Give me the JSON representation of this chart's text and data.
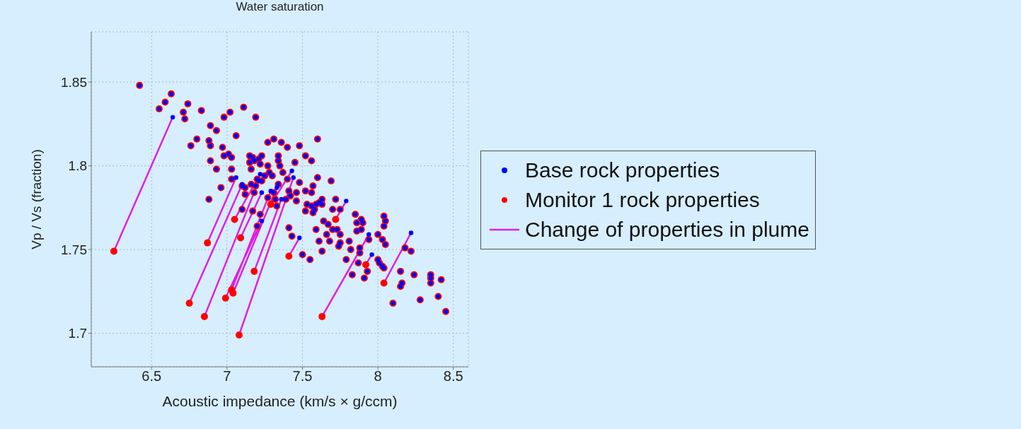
{
  "chart_data": {
    "type": "scatter",
    "title": "Water saturation",
    "xlabel": "Acoustic impedance (km/s × g/ccm)",
    "ylabel": "Vp / Vs (fraction)",
    "xlim": [
      6.1,
      8.6
    ],
    "xticks": [
      6.5,
      7,
      7.5,
      8,
      8.5
    ],
    "ylim": [
      1.68,
      1.88
    ],
    "yticks": [
      1.7,
      1.75,
      1.8,
      1.85
    ],
    "grid": true,
    "legend": "right",
    "marker": "circle",
    "series": [
      {
        "name": "Change of properties in plume",
        "type": "line",
        "marker": "none",
        "color": "#e020e0",
        "x": [
          6.64,
          6.25,
          null,
          7.06,
          6.87,
          null,
          7.1,
          6.75,
          null,
          7.21,
          6.85,
          null,
          7.23,
          6.99,
          null,
          7.29,
          7.03,
          null,
          7.33,
          7.04,
          null,
          7.44,
          7.08,
          null,
          7.23,
          7.09,
          null,
          7.22,
          7.05,
          null,
          7.36,
          7.18,
          null,
          7.43,
          7.29,
          null,
          7.48,
          7.41,
          null,
          7.94,
          7.63,
          null,
          7.79,
          7.72,
          null,
          7.96,
          7.92,
          null,
          8.22,
          8.04
        ],
        "values": [
          1.829,
          1.749,
          null,
          1.793,
          1.754,
          null,
          1.789,
          1.718,
          null,
          1.791,
          1.71,
          null,
          1.767,
          1.721,
          null,
          1.785,
          1.726,
          null,
          1.787,
          1.724,
          null,
          1.793,
          1.699,
          null,
          1.784,
          1.757,
          null,
          1.795,
          1.768,
          null,
          1.78,
          1.737,
          null,
          1.797,
          1.777,
          null,
          1.757,
          1.746,
          null,
          1.759,
          1.71,
          null,
          1.779,
          1.768,
          null,
          1.747,
          1.741,
          null,
          1.76,
          1.73
        ]
      },
      {
        "name": "Monitor 1 rock properties",
        "color": "#ff0000",
        "x": [
          6.42,
          6.63,
          6.59,
          6.55,
          6.74,
          6.83,
          6.71,
          6.72,
          7.02,
          6.98,
          6.89,
          6.93,
          6.8,
          6.76,
          6.88,
          6.89,
          6.97,
          6.98,
          7.01,
          7.03,
          6.89,
          6.93,
          7.03,
          7.03,
          6.96,
          6.88,
          7.11,
          7.19,
          7.06,
          7.27,
          7.31,
          7.36,
          7.4,
          7.48,
          7.6,
          7.15,
          7.17,
          7.23,
          7.15,
          7.18,
          7.21,
          7.22,
          7.16,
          7.27,
          7.34,
          7.34,
          7.35,
          7.37,
          7.45,
          7.52,
          7.56,
          7.28,
          7.25,
          7.3,
          7.2,
          7.23,
          7.19,
          7.16,
          7.1,
          7.12,
          7.12,
          7.18,
          7.27,
          7.31,
          7.34,
          7.4,
          7.41,
          7.42,
          7.46,
          7.46,
          7.48,
          7.6,
          7.69,
          7.52,
          7.56,
          7.57,
          7.53,
          7.56,
          7.59,
          7.61,
          7.63,
          7.63,
          7.52,
          7.57,
          7.58,
          7.1,
          7.17,
          7.22,
          7.32,
          7.33,
          7.39,
          7.2,
          7.41,
          7.43,
          7.5,
          7.55,
          7.59,
          7.61,
          7.63,
          7.66,
          7.64,
          7.67,
          7.68,
          7.72,
          7.7,
          7.75,
          7.7,
          7.73,
          7.75,
          7.74,
          7.75,
          7.81,
          7.82,
          7.79,
          7.83,
          7.85,
          7.86,
          7.89,
          7.9,
          7.86,
          7.89,
          7.88,
          7.88,
          7.87,
          7.93,
          7.91,
          7.94,
          8.0,
          8.04,
          8.05,
          8.04,
          8.03,
          8.05,
          8.0,
          8.01,
          8.03,
          8.04,
          8.18,
          8.22,
          8.15,
          8.24,
          8.16,
          8.15,
          8.1,
          8.28,
          8.35,
          8.35,
          8.35,
          8.42,
          8.4,
          8.45,
          6.25,
          6.87,
          6.75,
          6.85,
          6.99,
          7.03,
          7.04,
          7.08,
          7.09,
          7.05,
          7.18,
          7.29,
          7.41,
          7.63,
          7.72,
          7.92,
          8.04
        ],
        "values": [
          1.848,
          1.843,
          1.838,
          1.834,
          1.837,
          1.833,
          1.832,
          1.828,
          1.832,
          1.829,
          1.824,
          1.821,
          1.816,
          1.812,
          1.815,
          1.812,
          1.811,
          1.806,
          1.807,
          1.805,
          1.803,
          1.798,
          1.798,
          1.792,
          1.787,
          1.78,
          1.835,
          1.829,
          1.818,
          1.814,
          1.816,
          1.814,
          1.811,
          1.812,
          1.816,
          1.806,
          1.805,
          1.806,
          1.802,
          1.803,
          1.804,
          1.801,
          1.798,
          1.8,
          1.806,
          1.803,
          1.8,
          1.796,
          1.802,
          1.806,
          1.803,
          1.796,
          1.794,
          1.794,
          1.792,
          1.791,
          1.788,
          1.789,
          1.788,
          1.787,
          1.783,
          1.784,
          1.781,
          1.784,
          1.789,
          1.792,
          1.785,
          1.782,
          1.784,
          1.779,
          1.79,
          1.793,
          1.791,
          1.785,
          1.784,
          1.788,
          1.777,
          1.776,
          1.777,
          1.778,
          1.78,
          1.777,
          1.773,
          1.772,
          1.774,
          1.774,
          1.773,
          1.771,
          1.78,
          1.776,
          1.78,
          1.764,
          1.763,
          1.758,
          1.747,
          1.744,
          1.762,
          1.755,
          1.749,
          1.759,
          1.767,
          1.765,
          1.755,
          1.78,
          1.774,
          1.774,
          1.762,
          1.762,
          1.759,
          1.752,
          1.754,
          1.755,
          1.75,
          1.744,
          1.735,
          1.771,
          1.766,
          1.768,
          1.766,
          1.761,
          1.762,
          1.751,
          1.748,
          1.742,
          1.737,
          1.733,
          1.756,
          1.759,
          1.77,
          1.767,
          1.764,
          1.756,
          1.753,
          1.744,
          1.742,
          1.74,
          1.739,
          1.751,
          1.749,
          1.737,
          1.735,
          1.73,
          1.728,
          1.718,
          1.72,
          1.735,
          1.733,
          1.73,
          1.732,
          1.722,
          1.713,
          1.749,
          1.754,
          1.718,
          1.71,
          1.721,
          1.726,
          1.724,
          1.699,
          1.757,
          1.768,
          1.737,
          1.777,
          1.746,
          1.71,
          1.768,
          1.741,
          1.73
        ]
      },
      {
        "name": "Base rock properties",
        "color": "#0000ff",
        "x": [
          6.42,
          6.63,
          6.59,
          6.55,
          6.74,
          6.83,
          6.71,
          6.72,
          7.02,
          6.98,
          6.89,
          6.93,
          6.8,
          6.76,
          6.88,
          6.89,
          6.97,
          6.98,
          7.01,
          7.03,
          6.89,
          6.93,
          7.03,
          7.03,
          6.96,
          6.88,
          7.11,
          7.19,
          7.06,
          7.27,
          7.31,
          7.36,
          7.4,
          7.48,
          7.6,
          7.15,
          7.17,
          7.23,
          7.15,
          7.18,
          7.21,
          7.22,
          7.16,
          7.27,
          7.34,
          7.34,
          7.35,
          7.37,
          7.45,
          7.52,
          7.56,
          7.28,
          7.25,
          7.3,
          7.2,
          7.23,
          7.19,
          7.16,
          7.1,
          7.12,
          7.12,
          7.18,
          7.27,
          7.31,
          7.34,
          7.4,
          7.41,
          7.42,
          7.46,
          7.46,
          7.48,
          7.6,
          7.69,
          7.52,
          7.56,
          7.57,
          7.53,
          7.56,
          7.59,
          7.61,
          7.63,
          7.63,
          7.52,
          7.57,
          7.58,
          7.1,
          7.17,
          7.22,
          7.32,
          7.33,
          7.39,
          7.2,
          7.41,
          7.43,
          7.5,
          7.55,
          7.59,
          7.61,
          7.63,
          7.66,
          7.64,
          7.67,
          7.68,
          7.72,
          7.7,
          7.75,
          7.7,
          7.73,
          7.75,
          7.74,
          7.75,
          7.81,
          7.82,
          7.79,
          7.83,
          7.85,
          7.86,
          7.89,
          7.9,
          7.86,
          7.89,
          7.88,
          7.88,
          7.87,
          7.93,
          7.91,
          7.94,
          8.0,
          8.04,
          8.05,
          8.04,
          8.03,
          8.05,
          8.0,
          8.01,
          8.03,
          8.04,
          8.18,
          8.22,
          8.15,
          8.24,
          8.16,
          8.15,
          8.1,
          8.28,
          8.35,
          8.35,
          8.35,
          8.42,
          8.4,
          8.45,
          6.64,
          7.06,
          7.1,
          7.21,
          7.23,
          7.29,
          7.33,
          7.44,
          7.23,
          7.22,
          7.36,
          7.43,
          7.48,
          7.94,
          7.79,
          7.96,
          8.22
        ],
        "values": [
          1.848,
          1.843,
          1.838,
          1.834,
          1.837,
          1.833,
          1.832,
          1.828,
          1.832,
          1.829,
          1.824,
          1.821,
          1.816,
          1.812,
          1.815,
          1.812,
          1.811,
          1.806,
          1.807,
          1.805,
          1.803,
          1.798,
          1.798,
          1.792,
          1.787,
          1.78,
          1.835,
          1.829,
          1.818,
          1.814,
          1.816,
          1.814,
          1.811,
          1.812,
          1.816,
          1.806,
          1.805,
          1.806,
          1.802,
          1.803,
          1.804,
          1.801,
          1.798,
          1.8,
          1.806,
          1.803,
          1.8,
          1.796,
          1.802,
          1.806,
          1.803,
          1.796,
          1.794,
          1.794,
          1.792,
          1.791,
          1.788,
          1.789,
          1.788,
          1.787,
          1.783,
          1.784,
          1.781,
          1.784,
          1.789,
          1.792,
          1.785,
          1.782,
          1.784,
          1.779,
          1.79,
          1.793,
          1.791,
          1.785,
          1.784,
          1.788,
          1.777,
          1.776,
          1.777,
          1.778,
          1.78,
          1.777,
          1.773,
          1.772,
          1.774,
          1.774,
          1.773,
          1.771,
          1.78,
          1.776,
          1.78,
          1.764,
          1.763,
          1.758,
          1.747,
          1.744,
          1.762,
          1.755,
          1.749,
          1.759,
          1.767,
          1.765,
          1.755,
          1.78,
          1.774,
          1.774,
          1.762,
          1.762,
          1.759,
          1.752,
          1.754,
          1.755,
          1.75,
          1.744,
          1.735,
          1.771,
          1.766,
          1.768,
          1.766,
          1.761,
          1.762,
          1.751,
          1.748,
          1.742,
          1.737,
          1.733,
          1.756,
          1.759,
          1.77,
          1.767,
          1.764,
          1.756,
          1.753,
          1.744,
          1.742,
          1.74,
          1.739,
          1.751,
          1.749,
          1.737,
          1.735,
          1.73,
          1.728,
          1.718,
          1.72,
          1.735,
          1.733,
          1.73,
          1.732,
          1.722,
          1.713,
          1.829,
          1.793,
          1.789,
          1.791,
          1.767,
          1.785,
          1.787,
          1.793,
          1.784,
          1.795,
          1.78,
          1.797,
          1.757,
          1.759,
          1.779,
          1.747,
          1.76
        ]
      }
    ]
  }
}
